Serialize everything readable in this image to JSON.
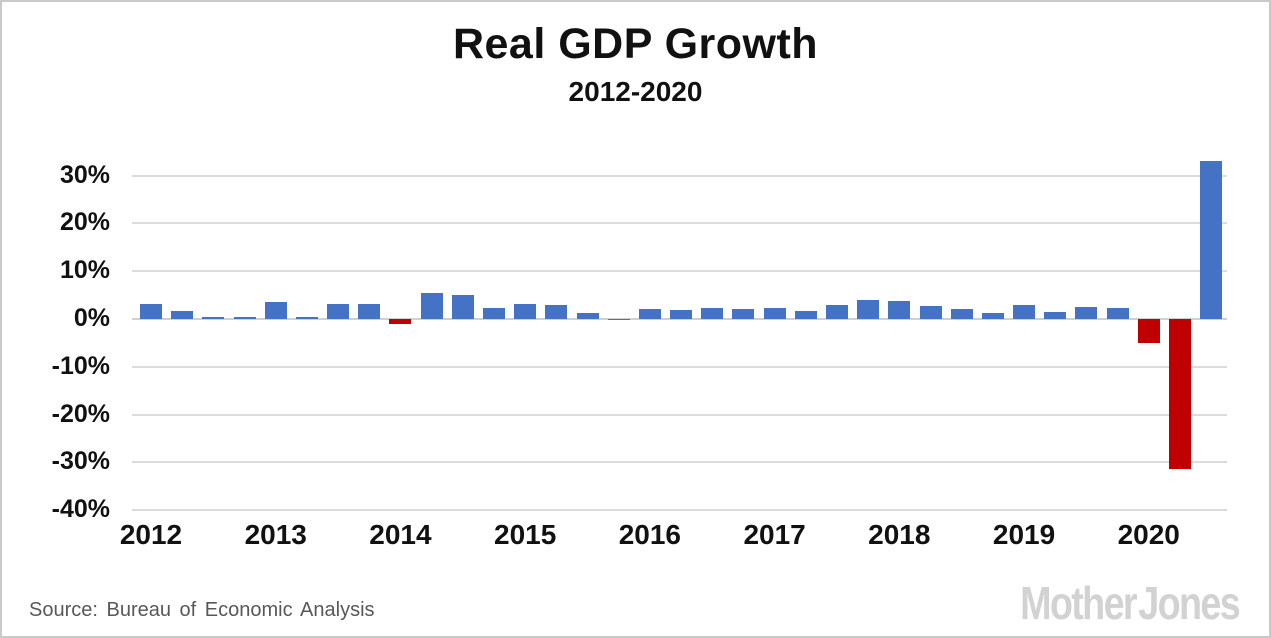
{
  "title": "Real GDP Growth",
  "subtitle": "2012-2020",
  "source": "Source: Bureau of Economic Analysis",
  "branding": "Mother Jones",
  "colors": {
    "positive_bar": "#4472C4",
    "negative_bar": "#C00000",
    "gridline": "#dcdcdc",
    "text": "#111111",
    "source_text": "#57585a",
    "logo_gray": "#d2d2d2"
  },
  "chart_data": {
    "type": "bar",
    "title": "Real GDP Growth",
    "subtitle": "2012-2020",
    "ylabel": "",
    "xlabel": "",
    "ytick_suffix": "%",
    "yticks": [
      30,
      20,
      10,
      0,
      -10,
      -20,
      -30,
      -40
    ],
    "ylim": [
      -40,
      35
    ],
    "grid": "horizontal",
    "legend": "none",
    "positive_color": "#4472C4",
    "negative_color": "#C00000",
    "year_labels": [
      "2012",
      "2013",
      "2014",
      "2015",
      "2016",
      "2017",
      "2018",
      "2019",
      "2020"
    ],
    "categories": [
      "2012 Q1",
      "2012 Q2",
      "2012 Q3",
      "2012 Q4",
      "2013 Q1",
      "2013 Q2",
      "2013 Q3",
      "2013 Q4",
      "2014 Q1",
      "2014 Q2",
      "2014 Q3",
      "2014 Q4",
      "2015 Q1",
      "2015 Q2",
      "2015 Q3",
      "2015 Q4",
      "2016 Q1",
      "2016 Q2",
      "2016 Q3",
      "2016 Q4",
      "2017 Q1",
      "2017 Q2",
      "2017 Q3",
      "2017 Q4",
      "2018 Q1",
      "2018 Q2",
      "2018 Q3",
      "2018 Q4",
      "2019 Q1",
      "2019 Q2",
      "2019 Q3",
      "2019 Q4",
      "2020 Q1",
      "2020 Q2",
      "2020 Q3"
    ],
    "values": [
      3.2,
      1.7,
      0.5,
      0.5,
      3.6,
      0.5,
      3.2,
      3.2,
      -1.1,
      5.5,
      5.0,
      2.3,
      3.2,
      3.0,
      1.3,
      0.1,
      2.0,
      1.9,
      2.2,
      2.0,
      2.3,
      1.7,
      2.9,
      3.9,
      3.8,
      2.7,
      2.1,
      1.3,
      2.9,
      1.5,
      2.6,
      2.4,
      -5.0,
      -31.4,
      33.1
    ]
  }
}
